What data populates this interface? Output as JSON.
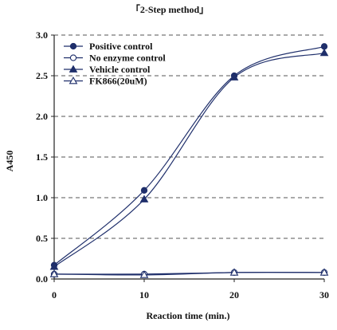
{
  "chart_data": {
    "type": "line",
    "title": "「2-Step method」",
    "xlabel": "Reaction time (min.)",
    "ylabel": "A450",
    "x": [
      0,
      10,
      20,
      30
    ],
    "xticks": [
      "0",
      "10",
      "20",
      "30"
    ],
    "yticks": [
      "0.0",
      "0.5",
      "1.0",
      "1.5",
      "2.0",
      "2.5",
      "3.0"
    ],
    "xlim": [
      0,
      30
    ],
    "ylim": [
      0,
      3.0
    ],
    "grid": "horizontal dashed",
    "legend_position": "top-left",
    "series": [
      {
        "name": "Positive control",
        "marker": "filled-circle",
        "color": "#1f2f6b",
        "values": [
          0.17,
          1.09,
          2.5,
          2.86
        ]
      },
      {
        "name": "No enzyme control",
        "marker": "open-circle",
        "color": "#1f2f6b",
        "values": [
          0.06,
          0.06,
          0.08,
          0.08
        ]
      },
      {
        "name": "Vehicle control",
        "marker": "filled-triangle",
        "color": "#1f2f6b",
        "values": [
          0.15,
          0.98,
          2.48,
          2.78
        ]
      },
      {
        "name": "FK866(20uM)",
        "marker": "open-triangle",
        "color": "#1f2f6b",
        "values": [
          0.06,
          0.05,
          0.08,
          0.08
        ]
      }
    ]
  }
}
